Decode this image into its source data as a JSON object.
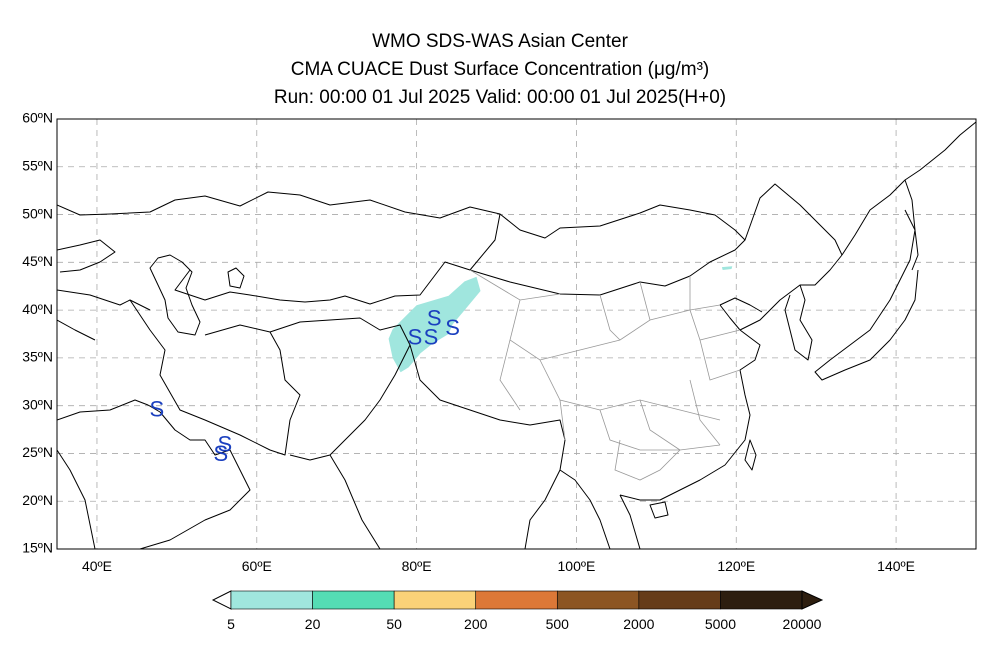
{
  "title": {
    "line1": "WMO SDS-WAS Asian Center",
    "line2": "CMA CUACE Dust Surface Concentration (μg/m³)",
    "line3": "Run: 00:00 01 Jul 2025    Valid: 00:00 01 Jul 2025(H+0)"
  },
  "map": {
    "lon_range": [
      35,
      150
    ],
    "lat_range": [
      15,
      60
    ],
    "lon_ticks": [
      40,
      60,
      80,
      100,
      120,
      140
    ],
    "lat_ticks": [
      15,
      20,
      25,
      30,
      35,
      40,
      45,
      50,
      55,
      60
    ],
    "lon_tick_labels": [
      "40ºE",
      "60ºE",
      "80ºE",
      "100ºE",
      "120ºE",
      "140ºE"
    ],
    "lat_tick_labels": [
      "15ºN",
      "20ºN",
      "25ºN",
      "30ºN",
      "35ºN",
      "40ºN",
      "45ºN",
      "50ºN",
      "55ºN",
      "60ºN"
    ],
    "grid": true,
    "dust_region_lon_lat": [
      [
        77,
        38
      ],
      [
        80,
        40.5
      ],
      [
        84,
        41.5
      ],
      [
        86,
        43
      ],
      [
        87.5,
        43.5
      ],
      [
        88,
        42
      ],
      [
        86,
        40
      ],
      [
        84.5,
        38.5
      ],
      [
        84,
        37.5
      ],
      [
        82,
        36.5
      ],
      [
        80.5,
        35.5
      ],
      [
        79,
        34
      ],
      [
        78,
        33.5
      ],
      [
        77,
        35
      ],
      [
        76.5,
        37
      ]
    ],
    "dust_region_color": "#a0e6de",
    "small_patch_lon_lat": [
      [
        118.2,
        44.5
      ],
      [
        119.5,
        44.6
      ],
      [
        119.4,
        44.3
      ],
      [
        118.3,
        44.2
      ]
    ],
    "dust_storm_symbol": "S",
    "dust_storm_symbol_color": "#1a3fbf",
    "dust_storm_symbols_lon_lat": [
      [
        79.8,
        37
      ],
      [
        81.8,
        37
      ],
      [
        84.5,
        38
      ],
      [
        82.2,
        39
      ],
      [
        47.5,
        29.5
      ],
      [
        55.5,
        24.8
      ],
      [
        56,
        25.8
      ]
    ]
  },
  "colorbar": {
    "colors": [
      "#a0e6de",
      "#54dcb4",
      "#fad278",
      "#dc7837",
      "#8c5523",
      "#663c19",
      "#2d1e0f"
    ],
    "labels": [
      "5",
      "20",
      "50",
      "200",
      "500",
      "2000",
      "5000",
      "20000"
    ]
  }
}
